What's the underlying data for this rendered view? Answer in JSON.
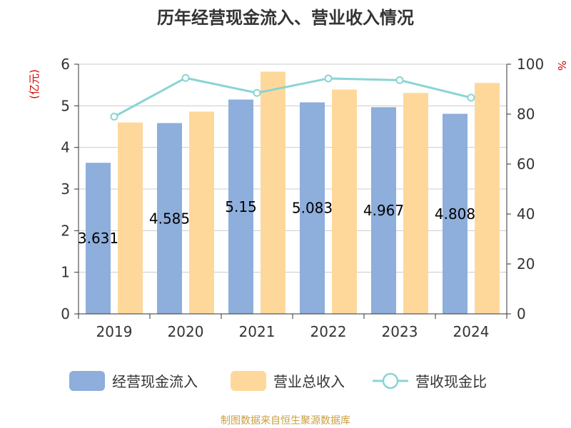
{
  "chart_data": {
    "type": "bar",
    "title": "历年经营现金流入、营业收入情况",
    "left_unit": "(亿元)",
    "right_unit": "%",
    "categories": [
      "2019",
      "2020",
      "2021",
      "2022",
      "2023",
      "2024"
    ],
    "left_ylim": [
      0,
      6
    ],
    "left_ticks": [
      "0",
      "1",
      "2",
      "3",
      "4",
      "5",
      "6"
    ],
    "right_ylim": [
      0,
      100
    ],
    "right_ticks": [
      "0",
      "20",
      "40",
      "60",
      "80",
      "100"
    ],
    "grid": true,
    "legend_position": "bottom",
    "series": [
      {
        "name": "经营现金流入",
        "type": "bar",
        "axis": "left",
        "color": "#8eaedb",
        "values": [
          3.631,
          4.585,
          5.15,
          5.083,
          4.967,
          4.808
        ],
        "labels": [
          "3.631",
          "4.585",
          "5.15",
          "5.083",
          "4.967",
          "4.808"
        ]
      },
      {
        "name": "营业总收入",
        "type": "bar",
        "axis": "left",
        "color": "#fed89b",
        "values": [
          4.6,
          4.86,
          5.82,
          5.39,
          5.31,
          5.55
        ]
      },
      {
        "name": "营收现金比",
        "type": "line",
        "axis": "right",
        "color": "#8ad4d4",
        "values": [
          79,
          94.5,
          88.5,
          94.3,
          93.6,
          86.6
        ]
      }
    ],
    "source": "制图数据来自恒生聚源数据库"
  }
}
